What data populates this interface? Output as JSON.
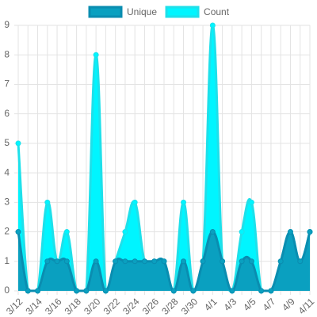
{
  "chart_data": {
    "type": "area",
    "categories": [
      "3/12",
      null,
      "3/14",
      null,
      "3/16",
      null,
      "3/18",
      null,
      "3/20",
      null,
      "3/22",
      null,
      "3/24",
      null,
      "3/26",
      null,
      "3/28",
      null,
      "3/30",
      null,
      "4/1",
      null,
      "4/3",
      null,
      "4/5",
      null,
      "4/7",
      null,
      "4/9",
      null,
      "4/11"
    ],
    "series": [
      {
        "name": "Unique",
        "color": "#0aa0c0",
        "border": "#0a8db0",
        "values": [
          2,
          0,
          0,
          1,
          1,
          1,
          0,
          0,
          1,
          0,
          1,
          1,
          1,
          1,
          1,
          1,
          0,
          1,
          0,
          1,
          2,
          1,
          0,
          1,
          1,
          0,
          0,
          1,
          2,
          1,
          2
        ]
      },
      {
        "name": "Count",
        "color": "#00f5ff",
        "border": "#1ee0ea",
        "values": [
          5,
          0,
          0,
          3,
          1,
          2,
          0,
          0,
          8,
          0,
          1,
          2,
          3,
          1,
          1,
          1,
          0,
          3,
          0,
          1,
          9,
          1,
          0,
          2,
          3,
          0,
          0,
          1,
          2,
          1,
          2
        ]
      }
    ],
    "ylim": [
      0,
      9
    ],
    "yticks": [
      0,
      1,
      2,
      3,
      4,
      5,
      6,
      7,
      8,
      9
    ],
    "grid": true,
    "legend": "top"
  }
}
